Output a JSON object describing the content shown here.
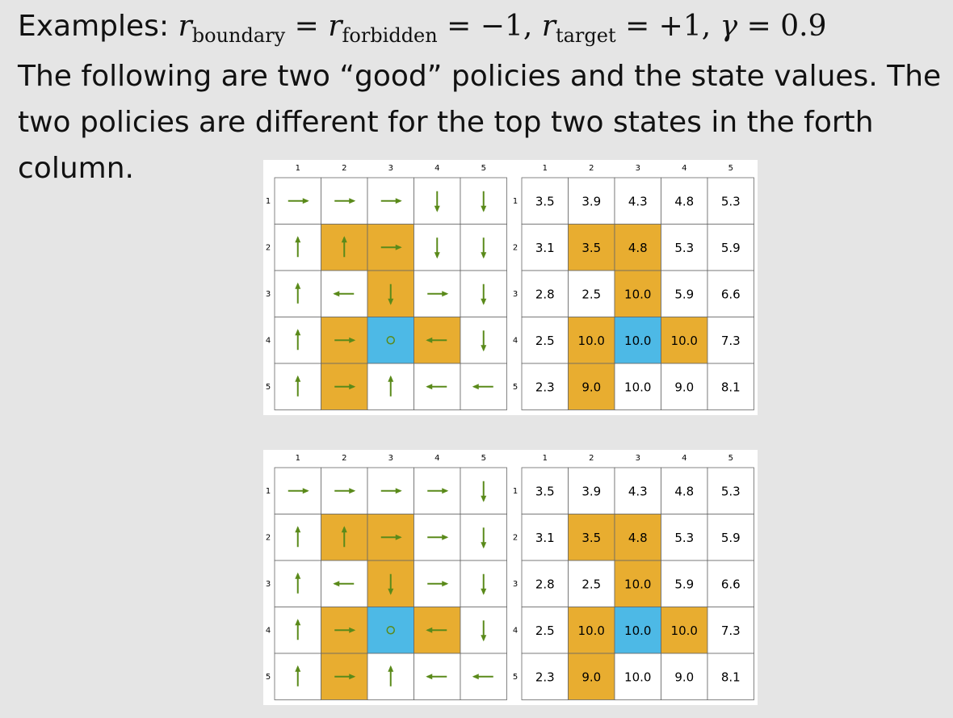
{
  "heading": {
    "label": "Examples:",
    "parts": [
      "r",
      "boundary",
      "=",
      "r",
      "forbidden",
      "= −1,",
      "r",
      "target",
      "= +1,",
      "γ",
      "= 0.9"
    ]
  },
  "intro": "The following are two “good” policies and the state values. The two policies are different for the top two states in the forth column.",
  "examples": [
    {
      "policy_grid": {
        "col_labels": [
          "1",
          "2",
          "3",
          "4",
          "5"
        ],
        "row_labels": [
          "1",
          "2",
          "3",
          "4",
          "5"
        ]
      },
      "value_grid": {
        "col_labels": [
          "1",
          "2",
          "3",
          "4",
          "5"
        ],
        "row_labels": [
          "1",
          "2",
          "3",
          "4",
          "5"
        ],
        "rows": [
          [
            "3.5",
            "3.9",
            "4.3",
            "4.8",
            "5.3"
          ],
          [
            "3.1",
            "3.5",
            "4.8",
            "5.3",
            "5.9"
          ],
          [
            "2.8",
            "2.5",
            "10.0",
            "5.9",
            "6.6"
          ],
          [
            "2.5",
            "10.0",
            "10.0",
            "10.0",
            "7.3"
          ],
          [
            "2.3",
            "9.0",
            "10.0",
            "9.0",
            "8.1"
          ]
        ]
      }
    },
    {
      "policy_grid": {
        "col_labels": [
          "1",
          "2",
          "3",
          "4",
          "5"
        ],
        "row_labels": [
          "1",
          "2",
          "3",
          "4",
          "5"
        ]
      },
      "value_grid": {
        "col_labels": [
          "1",
          "2",
          "3",
          "4",
          "5"
        ],
        "row_labels": [
          "1",
          "2",
          "3",
          "4",
          "5"
        ],
        "rows": [
          [
            "3.5",
            "3.9",
            "4.3",
            "4.8",
            "5.3"
          ],
          [
            "3.1",
            "3.5",
            "4.8",
            "5.3",
            "5.9"
          ],
          [
            "2.8",
            "2.5",
            "10.0",
            "5.9",
            "6.6"
          ],
          [
            "2.5",
            "10.0",
            "10.0",
            "10.0",
            "7.3"
          ],
          [
            "2.3",
            "9.0",
            "10.0",
            "9.0",
            "8.1"
          ]
        ]
      }
    }
  ]
}
